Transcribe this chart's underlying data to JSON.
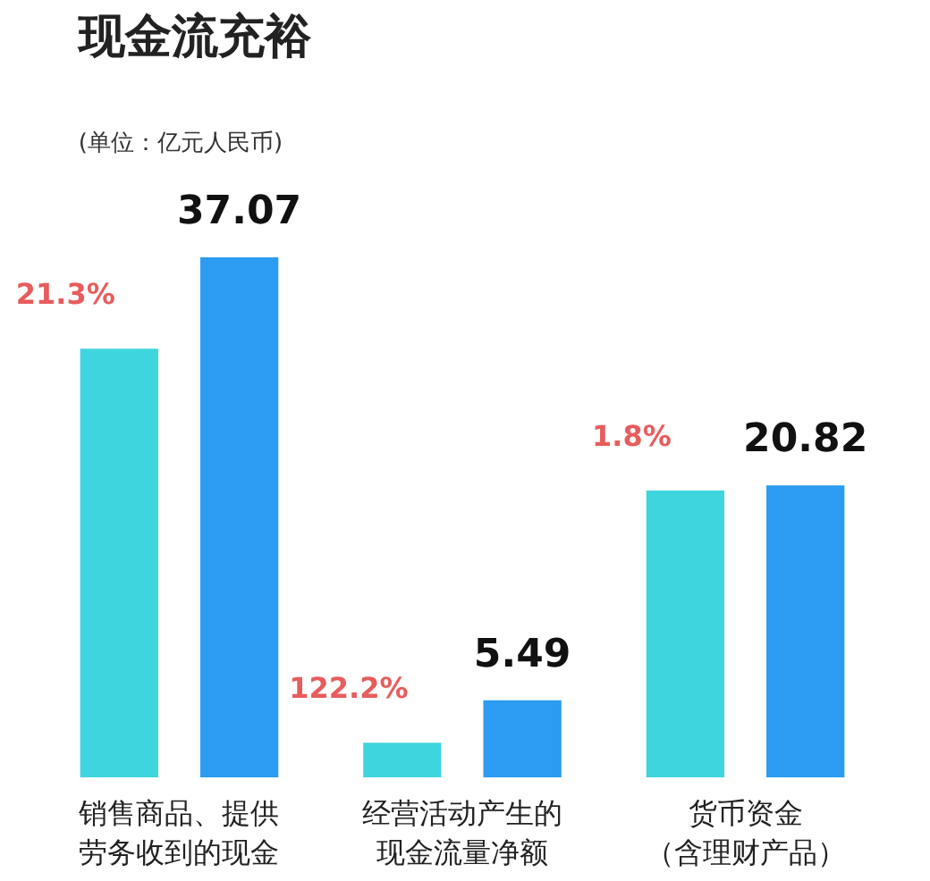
{
  "chart_data": {
    "type": "bar",
    "title": "现金流充裕",
    "subtitle": "(单位：亿元人民币)",
    "categories": [
      "销售商品、提供劳务收到的现金",
      "经营活动产生的现金流量净额",
      "货币资金（含理财产品）"
    ],
    "series": [
      {
        "color": "#3fd5df",
        "values": [
          30.56,
          2.47,
          20.45
        ]
      },
      {
        "color": "#2b9cf2",
        "values": [
          37.07,
          5.49,
          20.82
        ],
        "value_labels": [
          "37.07",
          "5.49",
          "20.82"
        ]
      }
    ],
    "annotations": [
      "21.3%",
      "122.2%",
      "1.8%"
    ],
    "grid": false
  }
}
